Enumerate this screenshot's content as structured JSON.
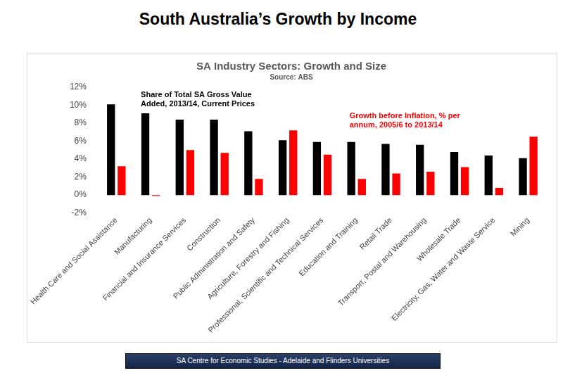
{
  "page_title": "South Australia’s Growth by Income",
  "footer": "SA Centre for Economic Studies - Adelaide and Flinders Universities",
  "chart_data": {
    "type": "bar",
    "title": "SA Industry Sectors: Growth and Size",
    "subtitle": "Source: ABS",
    "categories": [
      "Health Care and Social Assistance",
      "Manufacturing",
      "Financial and Insurance Services",
      "Construction",
      "Public Administration and Safety",
      "Agriculture, Forestry and Fishing",
      "Professional, Scientific and Technical Services",
      "Education and Training",
      "Retail Trade",
      "Transport, Postal and Warehousing",
      "Wholesale Trade",
      "Electricity, Gas, Water and Waste Service",
      "Mining"
    ],
    "series": [
      {
        "name": "Share of Total SA Gross Value Added, 2013/14, Current Prices",
        "color": "#000000",
        "values": [
          10.1,
          9.1,
          8.4,
          8.4,
          7.1,
          6.1,
          5.9,
          5.9,
          5.7,
          5.6,
          4.8,
          4.4,
          4.1
        ]
      },
      {
        "name": "Growth before Inflation, % per annum, 2005/6 to 2013/14",
        "color": "#ff0000",
        "values": [
          3.2,
          -0.1,
          5.0,
          4.7,
          1.8,
          7.2,
          4.5,
          1.8,
          2.4,
          2.6,
          3.1,
          0.8,
          6.5
        ]
      }
    ],
    "ylim": [
      -2,
      12
    ],
    "yticks": [
      {
        "value": -2,
        "label": "-2%"
      },
      {
        "value": 0,
        "label": "0%"
      },
      {
        "value": 2,
        "label": "2%"
      },
      {
        "value": 4,
        "label": "4%"
      },
      {
        "value": 6,
        "label": "6%"
      },
      {
        "value": 8,
        "label": "8%"
      },
      {
        "value": 10,
        "label": "10%"
      },
      {
        "value": 12,
        "label": "12%"
      }
    ],
    "grid": false
  }
}
